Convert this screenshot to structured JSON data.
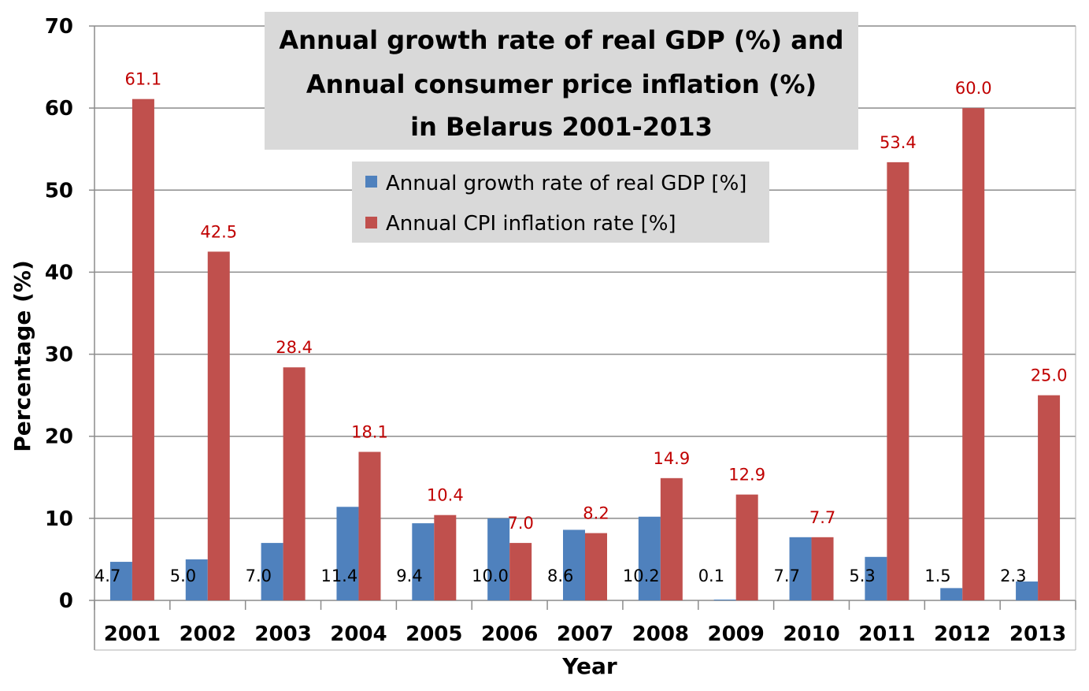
{
  "chart_data": {
    "type": "bar",
    "title_lines": [
      "Annual growth rate of real GDP (%) and",
      "Annual consumer price inflation (%)",
      "in Belarus 2001-2013"
    ],
    "xlabel": "Year",
    "ylabel": "Percentage (%)",
    "ylim": [
      0,
      70
    ],
    "yticks": [
      0,
      10,
      20,
      30,
      40,
      50,
      60,
      70
    ],
    "grid": true,
    "legend_position": "top-center",
    "categories": [
      "2001",
      "2002",
      "2003",
      "2004",
      "2005",
      "2006",
      "2007",
      "2008",
      "2009",
      "2010",
      "2011",
      "2012",
      "2013"
    ],
    "series": [
      {
        "name": "Annual growth rate of real GDP [%]",
        "color": "#4f81bd",
        "values": [
          4.7,
          5.0,
          7.0,
          11.4,
          9.4,
          10.0,
          8.6,
          10.2,
          0.1,
          7.7,
          5.3,
          1.5,
          2.3
        ],
        "labels": [
          "4.7",
          "5.0",
          "7.0",
          "11.4",
          "9.4",
          "10.0",
          "8.6",
          "10.2",
          "0.1",
          "7.7",
          "5.3",
          "1.5",
          "2.3"
        ],
        "label_color": "#000000"
      },
      {
        "name": "Annual CPI inflation rate [%]",
        "color": "#c0504d",
        "values": [
          61.1,
          42.5,
          28.4,
          18.1,
          10.4,
          7.0,
          8.2,
          14.9,
          12.9,
          7.7,
          53.4,
          60.0,
          25.0
        ],
        "labels": [
          "61.1",
          "42.5",
          "28.4",
          "18.1",
          "10.4",
          "7.0",
          "8.2",
          "14.9",
          "12.9",
          "7.7",
          "53.4",
          "60.0",
          "25.0"
        ],
        "label_color": "#c00000"
      }
    ],
    "colors": {
      "gridline": "#8c8c8c",
      "axis": "#8c8c8c",
      "title_box": "#d9d9d9"
    }
  }
}
